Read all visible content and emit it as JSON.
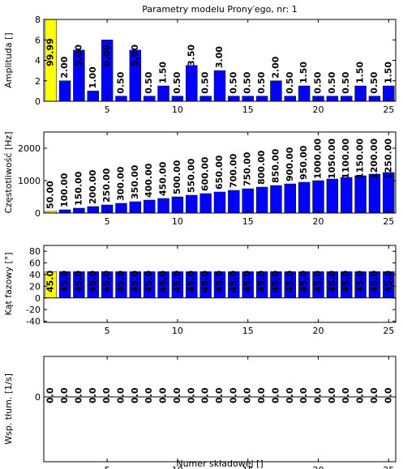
{
  "chart_data": [
    {
      "type": "bar",
      "title": "Parametry modelu Prony′ego, nr: 1",
      "ylabel": "Amplituda []",
      "x": [
        1,
        2,
        3,
        4,
        5,
        6,
        7,
        8,
        9,
        10,
        11,
        12,
        13,
        14,
        15,
        16,
        17,
        18,
        19,
        20,
        21,
        22,
        23,
        24,
        25
      ],
      "values": [
        99.99,
        2,
        5,
        1,
        6,
        0.5,
        5,
        0.5,
        1.5,
        0.5,
        3.5,
        0.5,
        3,
        0.5,
        0.5,
        0.5,
        2,
        0.5,
        1.5,
        0.5,
        0.5,
        0.5,
        1.5,
        0.5,
        1.5
      ],
      "value_labels": [
        "99.99",
        "2.00",
        "5.00",
        "1.00",
        "6.00",
        "0.50",
        "5.00",
        "0.50",
        "1.50",
        "0.50",
        "3.50",
        "0.50",
        "3.00",
        "0.50",
        "0.50",
        "0.50",
        "2.00",
        "0.50",
        "1.50",
        "0.50",
        "0.50",
        "0.50",
        "1.50",
        "0.50",
        "1.50"
      ],
      "colors": [
        "#ffff00",
        "#0000ff",
        "#0000ff",
        "#0000ff",
        "#0000ff",
        "#0000ff",
        "#0000ff",
        "#0000ff",
        "#0000ff",
        "#0000ff",
        "#0000ff",
        "#0000ff",
        "#0000ff",
        "#0000ff",
        "#0000ff",
        "#0000ff",
        "#0000ff",
        "#0000ff",
        "#0000ff",
        "#0000ff",
        "#0000ff",
        "#0000ff",
        "#0000ff",
        "#0000ff",
        "#0000ff"
      ],
      "xlim": [
        0.5,
        25.5
      ],
      "xticks": [
        5,
        10,
        15,
        20,
        25
      ],
      "ylim": [
        0,
        8
      ],
      "yticks": [
        0,
        2,
        4,
        6,
        8
      ]
    },
    {
      "type": "bar",
      "ylabel": "Częstotliwość [Hz]",
      "x": [
        1,
        2,
        3,
        4,
        5,
        6,
        7,
        8,
        9,
        10,
        11,
        12,
        13,
        14,
        15,
        16,
        17,
        18,
        19,
        20,
        21,
        22,
        23,
        24,
        25
      ],
      "values": [
        50,
        100,
        150,
        200,
        250,
        300,
        350,
        400,
        450,
        500,
        550,
        600,
        650,
        700,
        750,
        800,
        850,
        900,
        950,
        1000,
        1050,
        1100,
        1150,
        1200,
        1250
      ],
      "value_labels": [
        "50.00",
        "100.00",
        "150.00",
        "200.00",
        "250.00",
        "300.00",
        "350.00",
        "400.00",
        "450.00",
        "500.00",
        "550.00",
        "600.00",
        "650.00",
        "700.00",
        "750.00",
        "800.00",
        "850.00",
        "900.00",
        "950.00",
        "1000.00",
        "1050.00",
        "1100.00",
        "1150.00",
        "1200.00",
        "1250.00"
      ],
      "colors": [
        "#ffff00",
        "#0000ff",
        "#0000ff",
        "#0000ff",
        "#0000ff",
        "#0000ff",
        "#0000ff",
        "#0000ff",
        "#0000ff",
        "#0000ff",
        "#0000ff",
        "#0000ff",
        "#0000ff",
        "#0000ff",
        "#0000ff",
        "#0000ff",
        "#0000ff",
        "#0000ff",
        "#0000ff",
        "#0000ff",
        "#0000ff",
        "#0000ff",
        "#0000ff",
        "#0000ff",
        "#0000ff"
      ],
      "xlim": [
        0.5,
        25.5
      ],
      "xticks": [
        5,
        10,
        15,
        20,
        25
      ],
      "ylim": [
        0,
        2500
      ],
      "yticks": [
        0,
        1000,
        2000
      ]
    },
    {
      "type": "bar",
      "ylabel": "Kąt fazowy [°]",
      "x": [
        1,
        2,
        3,
        4,
        5,
        6,
        7,
        8,
        9,
        10,
        11,
        12,
        13,
        14,
        15,
        16,
        17,
        18,
        19,
        20,
        21,
        22,
        23,
        24,
        25
      ],
      "values": [
        45,
        45,
        45,
        45,
        45,
        45,
        45,
        45,
        45,
        45,
        45,
        45,
        45,
        45,
        45,
        45,
        45,
        45,
        45,
        45,
        45,
        45,
        45,
        45,
        45
      ],
      "value_labels": [
        "45.0",
        "45.0",
        "45.0",
        "45.0",
        "45.0",
        "45.0",
        "45.0",
        "45.0",
        "45.0",
        "45.0",
        "45.0",
        "45.0",
        "45.0",
        "45.0",
        "45.0",
        "45.0",
        "45.0",
        "45.0",
        "45.0",
        "45.0",
        "45.0",
        "45.0",
        "45.0",
        "45.0",
        "45.0"
      ],
      "colors": [
        "#ffff00",
        "#0000ff",
        "#0000ff",
        "#0000ff",
        "#0000ff",
        "#0000ff",
        "#0000ff",
        "#0000ff",
        "#0000ff",
        "#0000ff",
        "#0000ff",
        "#0000ff",
        "#0000ff",
        "#0000ff",
        "#0000ff",
        "#0000ff",
        "#0000ff",
        "#0000ff",
        "#0000ff",
        "#0000ff",
        "#0000ff",
        "#0000ff",
        "#0000ff",
        "#0000ff",
        "#0000ff"
      ],
      "xlim": [
        0.5,
        25.5
      ],
      "xticks": [
        5,
        10,
        15,
        20,
        25
      ],
      "ylim": [
        -42,
        90
      ],
      "yticks": [
        -40,
        -20,
        0,
        20,
        40,
        60,
        80
      ]
    },
    {
      "type": "bar",
      "ylabel": "Wsp. tłum. [1/s]",
      "xlabel": "Numer składowej []",
      "x": [
        1,
        2,
        3,
        4,
        5,
        6,
        7,
        8,
        9,
        10,
        11,
        12,
        13,
        14,
        15,
        16,
        17,
        18,
        19,
        20,
        21,
        22,
        23,
        24,
        25
      ],
      "values": [
        0,
        0,
        0,
        0,
        0,
        0,
        0,
        0,
        0,
        0,
        0,
        0,
        0,
        0,
        0,
        0,
        0,
        0,
        0,
        0,
        0,
        0,
        0,
        0,
        0
      ],
      "value_labels": [
        "0.0",
        "0.0",
        "0.0",
        "0.0",
        "0.0",
        "0.0",
        "0.0",
        "0.0",
        "0.0",
        "0.0",
        "0.0",
        "0.0",
        "0.0",
        "0.0",
        "0.0",
        "0.0",
        "0.0",
        "0.0",
        "0.0",
        "0.0",
        "0.0",
        "0.0",
        "0.0",
        "0.0",
        "0.0"
      ],
      "colors": [
        "#ffff00",
        "#0000ff",
        "#0000ff",
        "#0000ff",
        "#0000ff",
        "#0000ff",
        "#0000ff",
        "#0000ff",
        "#0000ff",
        "#0000ff",
        "#0000ff",
        "#0000ff",
        "#0000ff",
        "#0000ff",
        "#0000ff",
        "#0000ff",
        "#0000ff",
        "#0000ff",
        "#0000ff",
        "#0000ff",
        "#0000ff",
        "#0000ff",
        "#0000ff",
        "#0000ff",
        "#0000ff"
      ],
      "xlim": [
        0.5,
        25.5
      ],
      "xticks": [
        5,
        10,
        15,
        20,
        25
      ],
      "ylim": [
        -1.6,
        1
      ],
      "yticks": [
        0
      ]
    }
  ]
}
